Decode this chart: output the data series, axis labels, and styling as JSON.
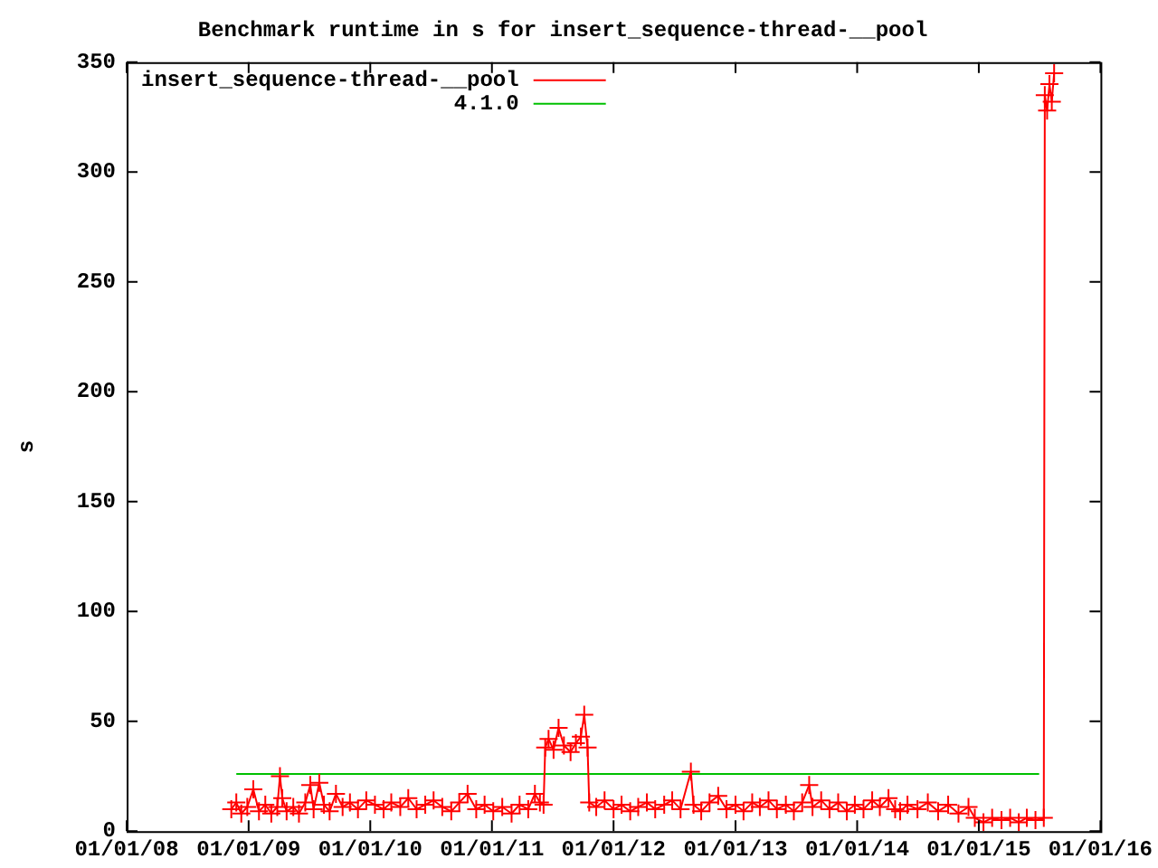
{
  "chart_data": {
    "type": "line",
    "title": "Benchmark runtime in s for insert_sequence-thread-__pool",
    "ylabel": "s",
    "xlim": [
      "2008-01-01",
      "2016-01-01"
    ],
    "xticks": [
      {
        "value": "2008-01-01",
        "label": "01/01/08"
      },
      {
        "value": "2009-01-01",
        "label": "01/01/09"
      },
      {
        "value": "2010-01-01",
        "label": "01/01/10"
      },
      {
        "value": "2011-01-01",
        "label": "01/01/11"
      },
      {
        "value": "2012-01-01",
        "label": "01/01/12"
      },
      {
        "value": "2013-01-01",
        "label": "01/01/13"
      },
      {
        "value": "2014-01-01",
        "label": "01/01/14"
      },
      {
        "value": "2015-01-01",
        "label": "01/01/15"
      },
      {
        "value": "2016-01-01",
        "label": "01/01/16"
      }
    ],
    "ylim": [
      0,
      350
    ],
    "yticks": [
      0,
      50,
      100,
      150,
      200,
      250,
      300,
      350
    ],
    "grid": false,
    "legend": "top left",
    "marker": "cross",
    "line_style": "solid",
    "series": [
      {
        "name": "insert_sequence-thread-__pool",
        "color": "#ff0000",
        "x": [
          "2008-11-10",
          "2008-11-25",
          "2008-12-10",
          "2008-12-28",
          "2009-01-15",
          "2009-02-01",
          "2009-02-20",
          "2009-03-10",
          "2009-03-28",
          "2009-04-05",
          "2009-04-12",
          "2009-04-25",
          "2009-05-15",
          "2009-06-01",
          "2009-06-20",
          "2009-07-05",
          "2009-07-15",
          "2009-08-01",
          "2009-08-15",
          "2009-09-01",
          "2009-09-20",
          "2009-10-10",
          "2009-11-01",
          "2009-11-25",
          "2009-12-20",
          "2010-01-15",
          "2010-02-10",
          "2010-03-05",
          "2010-04-01",
          "2010-04-25",
          "2010-05-20",
          "2010-06-15",
          "2010-07-10",
          "2010-08-05",
          "2010-09-01",
          "2010-09-25",
          "2010-10-20",
          "2010-11-15",
          "2010-12-10",
          "2011-01-05",
          "2011-02-01",
          "2011-03-01",
          "2011-03-25",
          "2011-04-20",
          "2011-05-10",
          "2011-05-25",
          "2011-06-05",
          "2011-06-10",
          "2011-06-20",
          "2011-07-05",
          "2011-07-20",
          "2011-08-05",
          "2011-08-25",
          "2011-09-10",
          "2011-09-25",
          "2011-10-05",
          "2011-10-15",
          "2011-10-20",
          "2011-11-10",
          "2011-12-05",
          "2012-01-01",
          "2012-01-25",
          "2012-02-20",
          "2012-03-15",
          "2012-04-10",
          "2012-05-05",
          "2012-06-01",
          "2012-06-25",
          "2012-07-20",
          "2012-08-20",
          "2012-08-28",
          "2012-09-20",
          "2012-10-15",
          "2012-11-10",
          "2012-12-05",
          "2013-01-01",
          "2013-01-25",
          "2013-02-20",
          "2013-03-15",
          "2013-04-10",
          "2013-05-05",
          "2013-06-01",
          "2013-06-25",
          "2013-07-20",
          "2013-08-10",
          "2013-08-20",
          "2013-09-15",
          "2013-10-10",
          "2013-11-05",
          "2013-12-01",
          "2013-12-25",
          "2014-01-20",
          "2014-02-15",
          "2014-03-10",
          "2014-04-05",
          "2014-04-25",
          "2014-05-10",
          "2014-06-01",
          "2014-07-01",
          "2014-08-01",
          "2014-09-01",
          "2014-10-01",
          "2014-11-01",
          "2014-12-01",
          "2014-12-20",
          "2015-01-15",
          "2015-02-10",
          "2015-03-10",
          "2015-04-05",
          "2015-05-01",
          "2015-05-25",
          "2015-06-20",
          "2015-07-15",
          "2015-07-18",
          "2015-07-25",
          "2015-08-01",
          "2015-08-08",
          "2015-08-15"
        ],
        "values": [
          10,
          13,
          8,
          11,
          19,
          9,
          12,
          8,
          11,
          25,
          15,
          9,
          11,
          8,
          13,
          21,
          10,
          22,
          12,
          9,
          17,
          11,
          13,
          10,
          14,
          12,
          10,
          13,
          11,
          15,
          10,
          12,
          14,
          11,
          9,
          13,
          17,
          10,
          12,
          9,
          11,
          8,
          12,
          10,
          17,
          13,
          12,
          38,
          42,
          37,
          47,
          39,
          36,
          40,
          43,
          53,
          38,
          13,
          11,
          14,
          10,
          12,
          9,
          11,
          13,
          10,
          12,
          14,
          10,
          27,
          12,
          9,
          13,
          16,
          10,
          12,
          9,
          13,
          11,
          14,
          10,
          12,
          9,
          13,
          21,
          11,
          14,
          10,
          13,
          9,
          12,
          10,
          14,
          11,
          15,
          10,
          9,
          12,
          10,
          13,
          9,
          12,
          8,
          11,
          6,
          4,
          6,
          5,
          6,
          4,
          6,
          5,
          6,
          335,
          328,
          340,
          332,
          345
        ]
      },
      {
        "name": "4.1.0",
        "color": "#00c000",
        "marker": "none",
        "x": [
          "2008-11-25",
          "2015-07-01"
        ],
        "values": [
          26,
          26
        ]
      }
    ]
  }
}
